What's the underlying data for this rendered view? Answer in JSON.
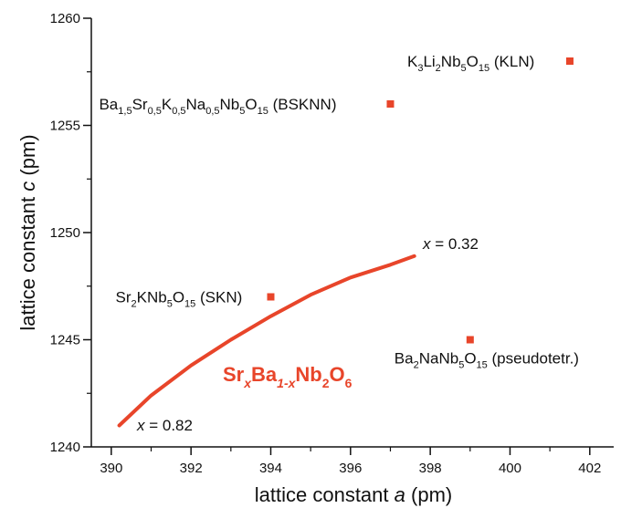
{
  "chart_data": {
    "type": "scatter",
    "title": "",
    "xlabel": {
      "prefix": "lattice constant ",
      "var": "a",
      "suffix": " (pm)"
    },
    "ylabel": {
      "prefix": "lattice constant ",
      "var": "c",
      "suffix": " (pm)"
    },
    "xlim": [
      389.5,
      402.6
    ],
    "ylim": [
      1240,
      1260
    ],
    "xticks": [
      390,
      392,
      394,
      396,
      398,
      400,
      402
    ],
    "yticks": [
      1240,
      1245,
      1250,
      1255,
      1260
    ],
    "grid": false,
    "accent_color": "#e8452a",
    "points": [
      {
        "name": "KLN",
        "x": 401.5,
        "y": 1258,
        "label": [
          [
            "K",
            ""
          ],
          [
            "3",
            "sub"
          ],
          [
            "Li",
            ""
          ],
          [
            "2",
            "sub"
          ],
          [
            "Nb",
            ""
          ],
          [
            "5",
            "sub"
          ],
          [
            "O",
            ""
          ],
          [
            "15",
            "sub"
          ],
          [
            " (KLN)",
            ""
          ]
        ]
      },
      {
        "name": "BSKNN",
        "x": 397.0,
        "y": 1256,
        "label": [
          [
            "Ba",
            ""
          ],
          [
            "1,5",
            "sub"
          ],
          [
            "Sr",
            ""
          ],
          [
            "0,5",
            "sub"
          ],
          [
            "K",
            ""
          ],
          [
            "0,5",
            "sub"
          ],
          [
            "Na",
            ""
          ],
          [
            "0,5",
            "sub"
          ],
          [
            "Nb",
            ""
          ],
          [
            "5",
            "sub"
          ],
          [
            "O",
            ""
          ],
          [
            "15",
            "sub"
          ],
          [
            " (BSKNN)",
            ""
          ]
        ]
      },
      {
        "name": "SKN",
        "x": 394.0,
        "y": 1247,
        "label": [
          [
            "Sr",
            ""
          ],
          [
            "2",
            "sub"
          ],
          [
            "KNb",
            ""
          ],
          [
            "5",
            "sub"
          ],
          [
            "O",
            ""
          ],
          [
            "15",
            "sub"
          ],
          [
            " (SKN)",
            ""
          ]
        ]
      },
      {
        "name": "BNN",
        "x": 399.0,
        "y": 1245,
        "label": [
          [
            "Ba",
            ""
          ],
          [
            "2",
            "sub"
          ],
          [
            "NaNb",
            ""
          ],
          [
            "5",
            "sub"
          ],
          [
            "O",
            ""
          ],
          [
            "15",
            "sub"
          ],
          [
            " (pseudotetr.)",
            ""
          ]
        ]
      }
    ],
    "series": [
      {
        "x": [
          390.2,
          391.0,
          392.0,
          393.0,
          394.0,
          395.0,
          396.0,
          397.0,
          397.6
        ],
        "y": [
          1241.0,
          1242.4,
          1243.8,
          1245.0,
          1246.1,
          1247.1,
          1247.9,
          1248.5,
          1248.9
        ]
      }
    ],
    "curve_label": [
      [
        "Sr",
        ""
      ],
      [
        "x",
        "subi"
      ],
      [
        "Ba",
        ""
      ],
      [
        "1-x",
        "subi"
      ],
      [
        "Nb",
        ""
      ],
      [
        "2",
        "sub"
      ],
      [
        "O",
        ""
      ],
      [
        "6",
        "sub"
      ]
    ],
    "annotations": [
      {
        "var": "x",
        "text": " = 0.32"
      },
      {
        "var": "x",
        "text": " = 0.82"
      }
    ]
  }
}
